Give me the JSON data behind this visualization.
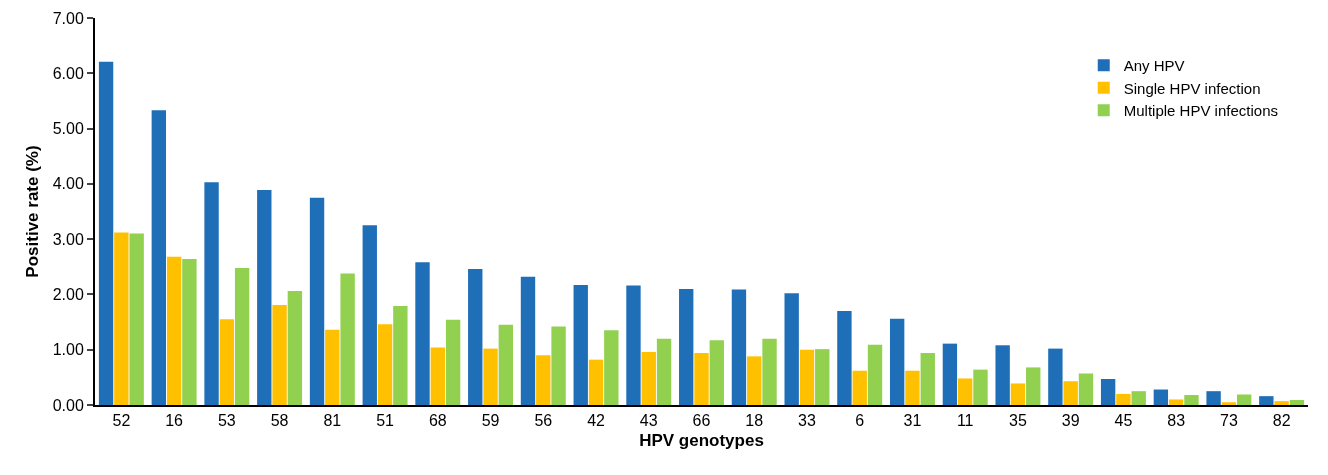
{
  "chart_data": {
    "type": "bar",
    "xlabel": "HPV genotypes",
    "ylabel": "Positive rate (%)",
    "categories": [
      "52",
      "16",
      "53",
      "58",
      "81",
      "51",
      "68",
      "59",
      "56",
      "42",
      "43",
      "66",
      "18",
      "33",
      "6",
      "31",
      "11",
      "35",
      "39",
      "45",
      "83",
      "73",
      "82"
    ],
    "series": [
      {
        "name": "Any HPV",
        "color": "#1f6fb8",
        "values": [
          6.21,
          5.33,
          4.03,
          3.89,
          3.75,
          3.25,
          2.58,
          2.46,
          2.32,
          2.17,
          2.16,
          2.1,
          2.09,
          2.02,
          1.7,
          1.56,
          1.11,
          1.08,
          1.02,
          0.47,
          0.28,
          0.25,
          0.16
        ]
      },
      {
        "name": "Single HPV infection",
        "color": "#ffc000",
        "values": [
          3.12,
          2.68,
          1.55,
          1.81,
          1.36,
          1.46,
          1.04,
          1.02,
          0.9,
          0.82,
          0.96,
          0.94,
          0.88,
          1.0,
          0.62,
          0.62,
          0.48,
          0.39,
          0.43,
          0.2,
          0.1,
          0.05,
          0.07
        ]
      },
      {
        "name": "Multiple HPV infections",
        "color": "#92d050",
        "values": [
          3.1,
          2.64,
          2.48,
          2.06,
          2.38,
          1.79,
          1.54,
          1.45,
          1.42,
          1.35,
          1.2,
          1.17,
          1.2,
          1.01,
          1.09,
          0.94,
          0.64,
          0.68,
          0.57,
          0.25,
          0.18,
          0.19,
          0.09
        ]
      }
    ],
    "ylim": [
      0,
      7
    ],
    "yticks": [
      {
        "value": 0,
        "label": "0.00"
      },
      {
        "value": 1,
        "label": "1.00"
      },
      {
        "value": 2,
        "label": "2.00"
      },
      {
        "value": 3,
        "label": "3.00"
      },
      {
        "value": 4,
        "label": "4.00"
      },
      {
        "value": 5,
        "label": "5.00"
      },
      {
        "value": 6,
        "label": "6.00"
      },
      {
        "value": 7,
        "label": "7.00"
      }
    ],
    "grid": false,
    "legend": "top right"
  }
}
